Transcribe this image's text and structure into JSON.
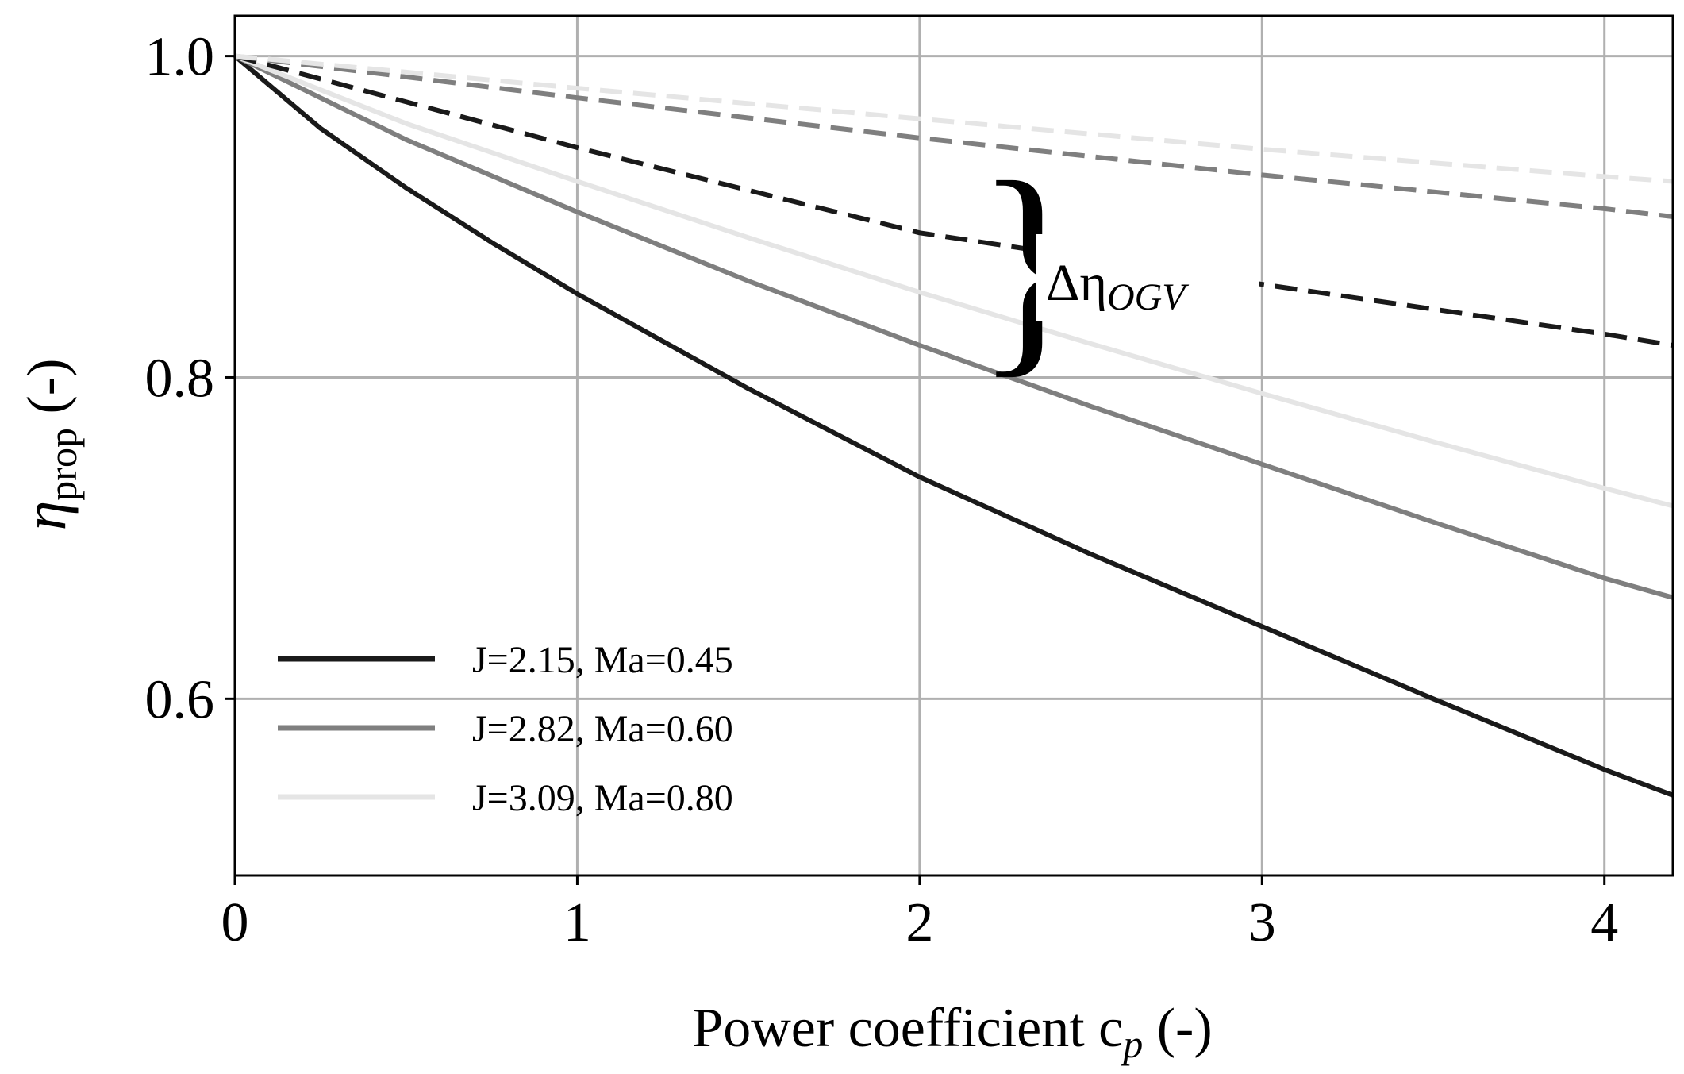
{
  "chart_data": {
    "type": "line",
    "xlabel": "Power coefficient c",
    "xlabel_sub": "p",
    "xlabel_suffix": " (-)",
    "ylabel": "η",
    "ylabel_sub": "prop",
    "ylabel_suffix": " (-)",
    "xlim": [
      0,
      4.2
    ],
    "ylim": [
      0.49,
      1.025
    ],
    "xticks": [
      0,
      1,
      2,
      3,
      4
    ],
    "xtick_labels": [
      "0",
      "1",
      "2",
      "3",
      "4"
    ],
    "yticks": [
      0.6,
      0.8,
      1.0
    ],
    "ytick_labels": [
      "0.6",
      "0.8",
      "1.0"
    ],
    "grid": true,
    "legend_position": "lower-left",
    "annotation": {
      "text": "Δη",
      "sub": "OGV"
    },
    "series": [
      {
        "name": "J=2.15, Ma=0.45",
        "color": "#1a1a1a",
        "style": "solid",
        "x": [
          0,
          0.25,
          0.5,
          0.75,
          1.0,
          1.5,
          2.0,
          2.5,
          3.0,
          3.5,
          4.0,
          4.2
        ],
        "y": [
          1.0,
          0.955,
          0.918,
          0.884,
          0.852,
          0.793,
          0.738,
          0.69,
          0.645,
          0.6,
          0.556,
          0.54
        ]
      },
      {
        "name": "J=2.82, Ma=0.60",
        "color": "#7f7f7f",
        "style": "solid",
        "x": [
          0,
          0.5,
          1.0,
          1.5,
          2.0,
          2.5,
          3.0,
          3.5,
          4.0,
          4.2
        ],
        "y": [
          1.0,
          0.948,
          0.903,
          0.86,
          0.82,
          0.782,
          0.746,
          0.71,
          0.675,
          0.663
        ]
      },
      {
        "name": "J=3.09, Ma=0.80",
        "color": "#e5e5e5",
        "style": "solid",
        "x": [
          0,
          0.5,
          1.0,
          1.5,
          2.0,
          2.5,
          3.0,
          3.5,
          4.0,
          4.2
        ],
        "y": [
          1.0,
          0.958,
          0.922,
          0.887,
          0.853,
          0.821,
          0.79,
          0.76,
          0.731,
          0.72
        ]
      },
      {
        "name": "",
        "color": "#1a1a1a",
        "style": "dashed",
        "x": [
          0,
          1.0,
          2.0,
          3.0,
          4.0,
          4.2
        ],
        "y": [
          1.0,
          0.943,
          0.89,
          0.858,
          0.827,
          0.82
        ]
      },
      {
        "name": "",
        "color": "#7f7f7f",
        "style": "dashed",
        "x": [
          0,
          1.0,
          2.0,
          3.0,
          4.0,
          4.2
        ],
        "y": [
          1.0,
          0.974,
          0.949,
          0.926,
          0.905,
          0.9
        ]
      },
      {
        "name": "",
        "color": "#e5e5e5",
        "style": "dashed",
        "x": [
          0,
          1.0,
          2.0,
          3.0,
          4.0,
          4.2
        ],
        "y": [
          1.0,
          0.98,
          0.961,
          0.942,
          0.925,
          0.922
        ]
      }
    ]
  }
}
